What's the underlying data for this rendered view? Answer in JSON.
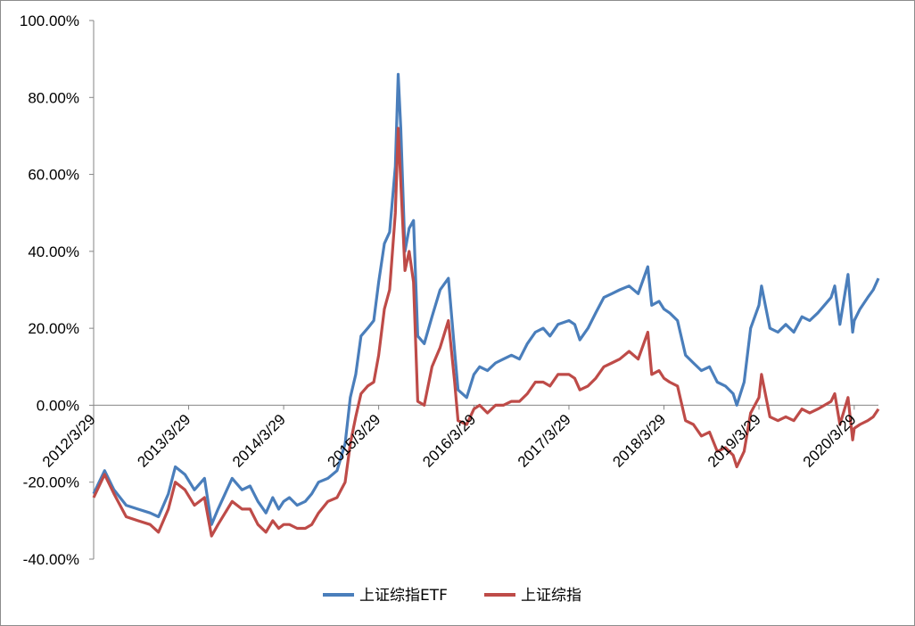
{
  "chart_data": {
    "type": "line",
    "title": "",
    "xlabel": "",
    "ylabel": "",
    "ylim": [
      -40,
      100
    ],
    "y_ticks": [
      "100.00%",
      "80.00%",
      "60.00%",
      "40.00%",
      "20.00%",
      "0.00%",
      "-20.00%",
      "-40.00%"
    ],
    "x_ticks": [
      "2012/3/29",
      "2013/3/29",
      "2014/3/29",
      "2015/3/29",
      "2016/3/29",
      "2017/3/29",
      "2018/3/29",
      "2019/3/29",
      "2020/3/29"
    ],
    "legend_position": "bottom",
    "grid": false,
    "series": [
      {
        "name": "上证综指ETF",
        "color": "#4a7ebb",
        "points": [
          [
            "2012/3/29",
            -23
          ],
          [
            "2012/5/10",
            -17
          ],
          [
            "2012/6/15",
            -22
          ],
          [
            "2012/8/1",
            -26
          ],
          [
            "2012/9/15",
            -27
          ],
          [
            "2012/11/1",
            -28
          ],
          [
            "2012/12/3",
            -29
          ],
          [
            "2013/1/10",
            -23
          ],
          [
            "2013/2/6",
            -16
          ],
          [
            "2013/3/15",
            -18
          ],
          [
            "2013/4/20",
            -22
          ],
          [
            "2013/5/29",
            -19
          ],
          [
            "2013/6/25",
            -31
          ],
          [
            "2013/7/20",
            -27
          ],
          [
            "2013/9/12",
            -19
          ],
          [
            "2013/10/20",
            -22
          ],
          [
            "2013/11/20",
            -21
          ],
          [
            "2013/12/20",
            -25
          ],
          [
            "2014/1/20",
            -28
          ],
          [
            "2014/2/15",
            -24
          ],
          [
            "2014/3/10",
            -27
          ],
          [
            "2014/3/29",
            -25
          ],
          [
            "2014/4/20",
            -24
          ],
          [
            "2014/5/20",
            -26
          ],
          [
            "2014/6/20",
            -25
          ],
          [
            "2014/7/15",
            -23
          ],
          [
            "2014/8/10",
            -20
          ],
          [
            "2014/9/15",
            -19
          ],
          [
            "2014/10/20",
            -17
          ],
          [
            "2014/11/20",
            -10
          ],
          [
            "2014/12/10",
            2
          ],
          [
            "2014/12/31",
            8
          ],
          [
            "2015/1/20",
            18
          ],
          [
            "2015/2/15",
            20
          ],
          [
            "2015/3/10",
            22
          ],
          [
            "2015/3/29",
            32
          ],
          [
            "2015/4/20",
            42
          ],
          [
            "2015/5/10",
            45
          ],
          [
            "2015/6/1",
            62
          ],
          [
            "2015/6/12",
            86
          ],
          [
            "2015/6/22",
            72
          ],
          [
            "2015/7/8",
            40
          ],
          [
            "2015/7/24",
            46
          ],
          [
            "2015/8/10",
            48
          ],
          [
            "2015/8/26",
            18
          ],
          [
            "2015/9/20",
            16
          ],
          [
            "2015/10/20",
            23
          ],
          [
            "2015/11/20",
            30
          ],
          [
            "2015/12/22",
            33
          ],
          [
            "2016/1/15",
            14
          ],
          [
            "2016/1/28",
            4
          ],
          [
            "2016/3/1",
            2
          ],
          [
            "2016/3/29",
            8
          ],
          [
            "2016/4/20",
            10
          ],
          [
            "2016/5/20",
            9
          ],
          [
            "2016/6/20",
            11
          ],
          [
            "2016/7/20",
            12
          ],
          [
            "2016/8/20",
            13
          ],
          [
            "2016/9/20",
            12
          ],
          [
            "2016/10/20",
            16
          ],
          [
            "2016/11/20",
            19
          ],
          [
            "2016/12/20",
            20
          ],
          [
            "2017/1/15",
            18
          ],
          [
            "2017/2/15",
            21
          ],
          [
            "2017/3/29",
            22
          ],
          [
            "2017/4/20",
            21
          ],
          [
            "2017/5/10",
            17
          ],
          [
            "2017/6/10",
            20
          ],
          [
            "2017/7/10",
            24
          ],
          [
            "2017/8/10",
            28
          ],
          [
            "2017/9/10",
            29
          ],
          [
            "2017/10/10",
            30
          ],
          [
            "2017/11/15",
            31
          ],
          [
            "2017/12/20",
            29
          ],
          [
            "2018/1/26",
            36
          ],
          [
            "2018/2/10",
            26
          ],
          [
            "2018/3/10",
            27
          ],
          [
            "2018/3/29",
            25
          ],
          [
            "2018/4/20",
            24
          ],
          [
            "2018/5/20",
            22
          ],
          [
            "2018/6/20",
            13
          ],
          [
            "2018/7/20",
            11
          ],
          [
            "2018/8/20",
            9
          ],
          [
            "2018/9/20",
            10
          ],
          [
            "2018/10/20",
            6
          ],
          [
            "2018/11/20",
            5
          ],
          [
            "2018/12/20",
            3
          ],
          [
            "2019/1/3",
            0
          ],
          [
            "2019/1/31",
            6
          ],
          [
            "2019/2/25",
            20
          ],
          [
            "2019/3/29",
            26
          ],
          [
            "2019/4/8",
            31
          ],
          [
            "2019/5/10",
            20
          ],
          [
            "2019/6/10",
            19
          ],
          [
            "2019/7/10",
            21
          ],
          [
            "2019/8/10",
            19
          ],
          [
            "2019/9/10",
            23
          ],
          [
            "2019/10/10",
            22
          ],
          [
            "2019/11/10",
            24
          ],
          [
            "2019/12/31",
            28
          ],
          [
            "2020/1/14",
            31
          ],
          [
            "2020/2/3",
            21
          ],
          [
            "2020/3/5",
            34
          ],
          [
            "2020/3/23",
            19
          ],
          [
            "2020/3/29",
            22
          ],
          [
            "2020/4/20",
            25
          ],
          [
            "2020/5/20",
            28
          ],
          [
            "2020/6/10",
            30
          ],
          [
            "2020/6/30",
            33
          ]
        ]
      },
      {
        "name": "上证综指",
        "color": "#be4b48",
        "points": [
          [
            "2012/3/29",
            -24
          ],
          [
            "2012/5/10",
            -18
          ],
          [
            "2012/6/15",
            -23
          ],
          [
            "2012/8/1",
            -29
          ],
          [
            "2012/9/15",
            -30
          ],
          [
            "2012/11/1",
            -31
          ],
          [
            "2012/12/3",
            -33
          ],
          [
            "2013/1/10",
            -27
          ],
          [
            "2013/2/6",
            -20
          ],
          [
            "2013/3/15",
            -22
          ],
          [
            "2013/4/20",
            -26
          ],
          [
            "2013/5/29",
            -24
          ],
          [
            "2013/6/25",
            -34
          ],
          [
            "2013/7/20",
            -31
          ],
          [
            "2013/9/12",
            -25
          ],
          [
            "2013/10/20",
            -27
          ],
          [
            "2013/11/20",
            -27
          ],
          [
            "2013/12/20",
            -31
          ],
          [
            "2014/1/20",
            -33
          ],
          [
            "2014/2/15",
            -30
          ],
          [
            "2014/3/10",
            -32
          ],
          [
            "2014/3/29",
            -31
          ],
          [
            "2014/4/20",
            -31
          ],
          [
            "2014/5/20",
            -32
          ],
          [
            "2014/6/20",
            -32
          ],
          [
            "2014/7/15",
            -31
          ],
          [
            "2014/8/10",
            -28
          ],
          [
            "2014/9/15",
            -25
          ],
          [
            "2014/10/20",
            -24
          ],
          [
            "2014/11/20",
            -20
          ],
          [
            "2014/12/10",
            -10
          ],
          [
            "2014/12/31",
            -3
          ],
          [
            "2015/1/20",
            3
          ],
          [
            "2015/2/15",
            5
          ],
          [
            "2015/3/10",
            6
          ],
          [
            "2015/3/29",
            13
          ],
          [
            "2015/4/20",
            25
          ],
          [
            "2015/5/10",
            30
          ],
          [
            "2015/6/1",
            50
          ],
          [
            "2015/6/12",
            72
          ],
          [
            "2015/6/22",
            58
          ],
          [
            "2015/7/8",
            35
          ],
          [
            "2015/7/24",
            40
          ],
          [
            "2015/8/10",
            32
          ],
          [
            "2015/8/26",
            1
          ],
          [
            "2015/9/20",
            0
          ],
          [
            "2015/10/20",
            10
          ],
          [
            "2015/11/20",
            15
          ],
          [
            "2015/12/22",
            22
          ],
          [
            "2016/1/15",
            6
          ],
          [
            "2016/1/28",
            -4
          ],
          [
            "2016/3/1",
            -5
          ],
          [
            "2016/3/29",
            -1
          ],
          [
            "2016/4/20",
            0
          ],
          [
            "2016/5/20",
            -2
          ],
          [
            "2016/6/20",
            0
          ],
          [
            "2016/7/20",
            0
          ],
          [
            "2016/8/20",
            1
          ],
          [
            "2016/9/20",
            1
          ],
          [
            "2016/10/20",
            3
          ],
          [
            "2016/11/20",
            6
          ],
          [
            "2016/12/20",
            6
          ],
          [
            "2017/1/15",
            5
          ],
          [
            "2017/2/15",
            8
          ],
          [
            "2017/3/29",
            8
          ],
          [
            "2017/4/20",
            7
          ],
          [
            "2017/5/10",
            4
          ],
          [
            "2017/6/10",
            5
          ],
          [
            "2017/7/10",
            7
          ],
          [
            "2017/8/10",
            10
          ],
          [
            "2017/9/10",
            11
          ],
          [
            "2017/10/10",
            12
          ],
          [
            "2017/11/15",
            14
          ],
          [
            "2017/12/20",
            12
          ],
          [
            "2018/1/26",
            19
          ],
          [
            "2018/2/10",
            8
          ],
          [
            "2018/3/10",
            9
          ],
          [
            "2018/3/29",
            7
          ],
          [
            "2018/4/20",
            6
          ],
          [
            "2018/5/20",
            5
          ],
          [
            "2018/6/20",
            -4
          ],
          [
            "2018/7/20",
            -5
          ],
          [
            "2018/8/20",
            -8
          ],
          [
            "2018/9/20",
            -7
          ],
          [
            "2018/10/20",
            -12
          ],
          [
            "2018/11/20",
            -11
          ],
          [
            "2018/12/20",
            -13
          ],
          [
            "2019/1/3",
            -16
          ],
          [
            "2019/1/31",
            -12
          ],
          [
            "2019/2/25",
            -2
          ],
          [
            "2019/3/29",
            2
          ],
          [
            "2019/4/8",
            8
          ],
          [
            "2019/5/10",
            -3
          ],
          [
            "2019/6/10",
            -4
          ],
          [
            "2019/7/10",
            -3
          ],
          [
            "2019/8/10",
            -4
          ],
          [
            "2019/9/10",
            -1
          ],
          [
            "2019/10/10",
            -2
          ],
          [
            "2019/11/10",
            -1
          ],
          [
            "2019/12/31",
            1
          ],
          [
            "2020/1/14",
            3
          ],
          [
            "2020/2/3",
            -5
          ],
          [
            "2020/3/5",
            2
          ],
          [
            "2020/3/23",
            -9
          ],
          [
            "2020/3/29",
            -6
          ],
          [
            "2020/4/20",
            -5
          ],
          [
            "2020/5/20",
            -4
          ],
          [
            "2020/6/10",
            -3
          ],
          [
            "2020/6/30",
            -1
          ]
        ]
      }
    ]
  }
}
